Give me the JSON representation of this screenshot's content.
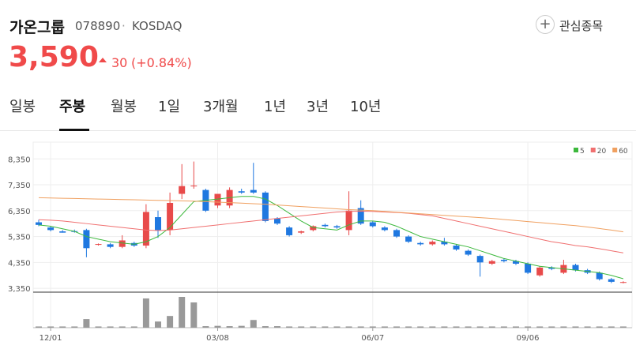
{
  "header": {
    "title": "가온그룹",
    "code": "078890",
    "separator": "·",
    "market": "KOSDAQ",
    "watch_button": "관심종목",
    "price": "3,590",
    "change": "30",
    "change_rate": "(+0.84%)"
  },
  "tabs": [
    "일봉",
    "주봉",
    "월봉",
    "1일",
    "3개월",
    "1년",
    "3년",
    "10년"
  ],
  "selected_tab": 1,
  "chart_data": {
    "type": "candlestick",
    "categories": [
      null,
      "12/01",
      null,
      null,
      null,
      null,
      null,
      null,
      null,
      null,
      null,
      null,
      null,
      null,
      null,
      "03/08",
      null,
      null,
      null,
      null,
      null,
      null,
      null,
      null,
      null,
      null,
      null,
      null,
      "06/07",
      null,
      null,
      null,
      null,
      null,
      null,
      null,
      null,
      null,
      null,
      null,
      null,
      "09/06",
      null,
      null,
      null,
      null,
      null,
      null,
      null,
      null
    ],
    "open": [
      5900,
      5700,
      5550,
      5560,
      5600,
      5030,
      5050,
      4950,
      5100,
      5000,
      6100,
      5600,
      7000,
      7300,
      7150,
      6550,
      6550,
      7100,
      7150,
      7050,
      6050,
      5700,
      5500,
      5600,
      5800,
      5750,
      5600,
      6450,
      5900,
      5700,
      5600,
      5350,
      5100,
      5050,
      5150,
      5000,
      4800,
      4600,
      4300,
      4450,
      4400,
      4300,
      3850,
      4150,
      3950,
      4250,
      4050,
      3950,
      3700,
      3560
    ],
    "high": [
      6000,
      5750,
      5600,
      5620,
      5650,
      5080,
      5100,
      5400,
      5150,
      6600,
      6350,
      7050,
      8150,
      8250,
      7200,
      7000,
      7250,
      7200,
      8200,
      7100,
      6100,
      5750,
      5580,
      5780,
      5850,
      5800,
      7100,
      6750,
      5950,
      5750,
      5650,
      5400,
      5150,
      5200,
      5300,
      5050,
      4850,
      4650,
      4450,
      4500,
      4450,
      4350,
      4200,
      4200,
      4450,
      4300,
      4100,
      4000,
      3750,
      3620
    ],
    "low": [
      5750,
      5550,
      5500,
      5500,
      4550,
      5000,
      4900,
      4900,
      4950,
      4900,
      5300,
      5400,
      6800,
      7200,
      6300,
      6450,
      6450,
      7000,
      7000,
      5900,
      5800,
      5350,
      5450,
      5550,
      5700,
      5650,
      5400,
      5800,
      5700,
      5550,
      5300,
      5100,
      5000,
      5000,
      5000,
      4800,
      4600,
      3800,
      4250,
      4350,
      4250,
      3900,
      3800,
      4050,
      3900,
      4000,
      3900,
      3650,
      3550,
      3540
    ],
    "close": [
      5800,
      5600,
      5500,
      5540,
      4900,
      5060,
      4950,
      5200,
      5000,
      6300,
      5600,
      6650,
      7300,
      7320,
      6350,
      7000,
      7150,
      7050,
      7050,
      5950,
      5850,
      5400,
      5550,
      5750,
      5750,
      5700,
      6350,
      5850,
      5750,
      5600,
      5350,
      5150,
      5050,
      5150,
      5050,
      4850,
      4650,
      4350,
      4400,
      4400,
      4300,
      3950,
      4150,
      4100,
      4250,
      4050,
      3950,
      3700,
      3600,
      3590
    ],
    "up_color": "#e84a4a",
    "down_color": "#1f78e0",
    "series": [
      {
        "name": "5",
        "color": "#3cb83c",
        "values": [
          5800,
          5750,
          5650,
          5550,
          5350,
          5250,
          5150,
          5100,
          5050,
          5150,
          5350,
          5700,
          6200,
          6700,
          6750,
          6800,
          6850,
          6900,
          6900,
          6800,
          6550,
          6250,
          5950,
          5700,
          5650,
          5600,
          5800,
          5950,
          5950,
          5900,
          5750,
          5550,
          5350,
          5250,
          5150,
          5050,
          4950,
          4800,
          4650,
          4500,
          4400,
          4300,
          4200,
          4150,
          4100,
          4050,
          4000,
          3950,
          3850,
          3720
        ]
      },
      {
        "name": "20",
        "color": "#f07070",
        "values": [
          6000,
          5980,
          5950,
          5900,
          5850,
          5800,
          5750,
          5700,
          5650,
          5600,
          5580,
          5600,
          5650,
          5700,
          5750,
          5800,
          5850,
          5900,
          5950,
          6000,
          6050,
          6100,
          6150,
          6200,
          6250,
          6300,
          6320,
          6330,
          6320,
          6300,
          6280,
          6250,
          6200,
          6150,
          6050,
          5950,
          5850,
          5750,
          5650,
          5550,
          5450,
          5350,
          5250,
          5150,
          5080,
          5000,
          4950,
          4880,
          4800,
          4720
        ]
      },
      {
        "name": "60",
        "color": "#f0a060",
        "values": [
          6850,
          6840,
          6830,
          6820,
          6810,
          6800,
          6790,
          6780,
          6770,
          6760,
          6750,
          6740,
          6730,
          6720,
          6700,
          6680,
          6660,
          6640,
          6620,
          6600,
          6570,
          6540,
          6510,
          6480,
          6450,
          6420,
          6390,
          6370,
          6350,
          6320,
          6290,
          6260,
          6230,
          6200,
          6170,
          6140,
          6110,
          6080,
          6050,
          6010,
          5970,
          5930,
          5890,
          5850,
          5810,
          5770,
          5720,
          5660,
          5600,
          5530
        ]
      }
    ],
    "ylim": [
      3200,
      9000
    ],
    "yticks": [
      {
        "value": 8350,
        "label": "8,350"
      },
      {
        "value": 7350,
        "label": "7,350"
      },
      {
        "value": 6350,
        "label": "6,350"
      },
      {
        "value": 5350,
        "label": "5,350"
      },
      {
        "value": 4350,
        "label": "4,350"
      },
      {
        "value": 3350,
        "label": "3,350"
      }
    ],
    "grid": true,
    "volume": {
      "color": "#999999",
      "ylim": [
        0,
        100
      ],
      "values": [
        4,
        4,
        4,
        4,
        28,
        4,
        4,
        4,
        4,
        95,
        20,
        38,
        100,
        82,
        5,
        6,
        5,
        6,
        25,
        5,
        5,
        4,
        4,
        4,
        4,
        4,
        4,
        4,
        4,
        4,
        4,
        4,
        4,
        4,
        4,
        4,
        4,
        4,
        4,
        4,
        4,
        4,
        4,
        4,
        4,
        4,
        4,
        4,
        4,
        4
      ]
    }
  }
}
